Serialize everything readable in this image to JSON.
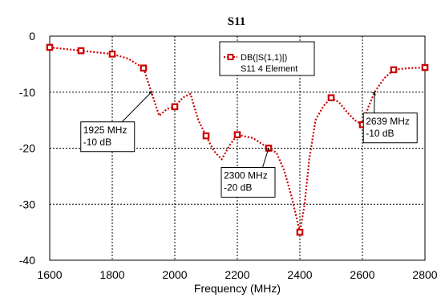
{
  "chart_data": {
    "type": "line",
    "title": "S11",
    "xlabel": "Frequency (MHz)",
    "ylabel": "",
    "xlim": [
      1600,
      2800
    ],
    "ylim": [
      -40,
      0
    ],
    "x_ticks": [
      "1600",
      "1800",
      "2000",
      "2200",
      "2400",
      "2600",
      "2800"
    ],
    "y_ticks": [
      "0",
      "-10",
      "-20",
      "-30",
      "-40"
    ],
    "grid": true,
    "legend_placement": "top-right",
    "legend": [
      "DB(|S(1,1)|)",
      "S11 4 Element"
    ],
    "series": [
      {
        "name": "DB(|S(1,1)|)",
        "color": "#cc0000",
        "curve": [
          [
            1600,
            -2.0
          ],
          [
            1650,
            -2.3
          ],
          [
            1700,
            -2.6
          ],
          [
            1750,
            -2.9
          ],
          [
            1800,
            -3.2
          ],
          [
            1850,
            -4.0
          ],
          [
            1900,
            -5.7
          ],
          [
            1925,
            -10.0
          ],
          [
            1950,
            -14.2
          ],
          [
            1975,
            -13.0
          ],
          [
            2000,
            -12.6
          ],
          [
            2025,
            -11.0
          ],
          [
            2050,
            -10.3
          ],
          [
            2075,
            -15.0
          ],
          [
            2100,
            -17.8
          ],
          [
            2125,
            -20.5
          ],
          [
            2150,
            -22.0
          ],
          [
            2175,
            -19.5
          ],
          [
            2200,
            -17.6
          ],
          [
            2250,
            -18.2
          ],
          [
            2300,
            -20.0
          ],
          [
            2325,
            -20.8
          ],
          [
            2350,
            -24.0
          ],
          [
            2375,
            -29.0
          ],
          [
            2400,
            -35.0
          ],
          [
            2415,
            -30.0
          ],
          [
            2430,
            -22.0
          ],
          [
            2450,
            -15.0
          ],
          [
            2475,
            -12.5
          ],
          [
            2500,
            -11.0
          ],
          [
            2525,
            -11.8
          ],
          [
            2550,
            -13.5
          ],
          [
            2575,
            -15.0
          ],
          [
            2600,
            -15.8
          ],
          [
            2620,
            -12.5
          ],
          [
            2639,
            -10.0
          ],
          [
            2670,
            -7.5
          ],
          [
            2700,
            -6.0
          ],
          [
            2750,
            -5.7
          ],
          [
            2800,
            -5.6
          ]
        ],
        "markers": [
          [
            1600,
            -2.0
          ],
          [
            1700,
            -2.6
          ],
          [
            1800,
            -3.2
          ],
          [
            1900,
            -5.7
          ],
          [
            2000,
            -12.6
          ],
          [
            2100,
            -17.8
          ],
          [
            2200,
            -17.6
          ],
          [
            2300,
            -20.0
          ],
          [
            2400,
            -35.0
          ],
          [
            2500,
            -11.0
          ],
          [
            2600,
            -15.8
          ],
          [
            2700,
            -6.0
          ],
          [
            2800,
            -5.6
          ]
        ]
      }
    ],
    "annotations": [
      {
        "x": 1925,
        "y": -10,
        "lines": [
          "1925 MHz",
          "-10 dB"
        ]
      },
      {
        "x": 2300,
        "y": -20,
        "lines": [
          "2300 MHz",
          "-20 dB"
        ]
      },
      {
        "x": 2639,
        "y": -10,
        "lines": [
          "2639 MHz",
          "-10 dB"
        ]
      }
    ]
  }
}
